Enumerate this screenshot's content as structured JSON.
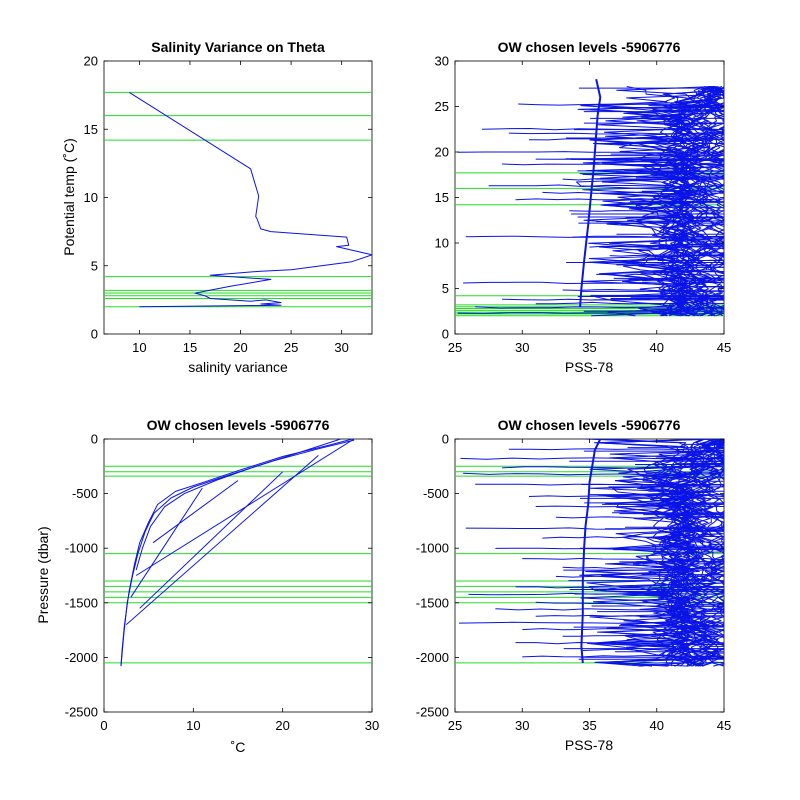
{
  "figure": {
    "line_color": "#0a14e6",
    "level_color": "#22dd22"
  },
  "chart_data": [
    {
      "type": "line",
      "title": "Salinity Variance on Theta",
      "xlabel": "salinity variance",
      "ylabel": "Potential temp (˚C)",
      "xlim": [
        6.5,
        33
      ],
      "ylim": [
        0,
        20
      ],
      "xticks": [
        10,
        15,
        20,
        25,
        30
      ],
      "yticks": [
        0,
        5,
        10,
        15,
        20
      ],
      "grid": false,
      "hlines": [
        17.7,
        16.0,
        14.2,
        4.2,
        3.2,
        3.0,
        2.8,
        2.6,
        2.0
      ],
      "series": [
        {
          "x": [
            9.0,
            21.0,
            21.8,
            21.5,
            21.6,
            22.0,
            23.0,
            30.5,
            30.7,
            29.5,
            33.0,
            31.0,
            28.0,
            25.0,
            22.0,
            17.0,
            23.0,
            19.0,
            15.5,
            16.5,
            17.0,
            21.0,
            22.5,
            24.0,
            22.0,
            24.0,
            10.0
          ],
          "y": [
            17.7,
            12.1,
            10.1,
            8.6,
            8.5,
            7.7,
            7.5,
            7.1,
            6.5,
            6.4,
            5.8,
            5.3,
            5.0,
            4.7,
            4.6,
            4.3,
            4.0,
            3.5,
            3.0,
            2.8,
            2.6,
            2.4,
            2.5,
            2.3,
            2.2,
            2.1,
            2.0
          ]
        }
      ]
    },
    {
      "type": "line",
      "title": "OW chosen levels -5906776",
      "xlabel": "PSS-78",
      "ylabel": "",
      "xlim": [
        25,
        45
      ],
      "ylim": [
        0,
        30
      ],
      "xticks": [
        25,
        30,
        35,
        40,
        45
      ],
      "yticks": [
        0,
        5,
        10,
        15,
        20,
        25,
        30
      ],
      "grid": false,
      "hlines": [
        17.7,
        16.0,
        14.2,
        4.2,
        3.2,
        3.0,
        2.8,
        2.6,
        2.4,
        2.2,
        2.0
      ],
      "spikes": [
        {
          "y": 25.2,
          "x": 29.7
        },
        {
          "y": 22.5,
          "x": 27.0
        },
        {
          "y": 22.0,
          "x": 29.0
        },
        {
          "y": 21.4,
          "x": 30.5
        },
        {
          "y": 20.0,
          "x": 25.2
        },
        {
          "y": 19.2,
          "x": 31.0
        },
        {
          "y": 18.6,
          "x": 28.5
        },
        {
          "y": 17.0,
          "x": 33.0
        },
        {
          "y": 16.3,
          "x": 27.5
        },
        {
          "y": 15.5,
          "x": 31.5
        },
        {
          "y": 14.8,
          "x": 29.5
        },
        {
          "y": 13.5,
          "x": 33.5
        },
        {
          "y": 12.4,
          "x": 35.5
        },
        {
          "y": 10.7,
          "x": 25.8
        },
        {
          "y": 9.6,
          "x": 35.0
        },
        {
          "y": 8.6,
          "x": 36.5
        },
        {
          "y": 7.6,
          "x": 37.0
        },
        {
          "y": 6.5,
          "x": 35.5
        },
        {
          "y": 5.6,
          "x": 25.6
        },
        {
          "y": 4.8,
          "x": 33.0
        },
        {
          "y": 3.8,
          "x": 28.5
        },
        {
          "y": 3.4,
          "x": 31.0
        },
        {
          "y": 2.9,
          "x": 26.5
        },
        {
          "y": 2.3,
          "x": 25.2
        }
      ],
      "core_profile": {
        "x": [
          34.3,
          34.4,
          34.6,
          34.9,
          35.1,
          35.3,
          35.4,
          35.5,
          35.6,
          35.8,
          35.5
        ],
        "y": [
          3.0,
          5.0,
          8.0,
          12.0,
          15.0,
          18.0,
          20.0,
          22.0,
          24.0,
          26.0,
          28.0
        ]
      }
    },
    {
      "type": "line",
      "title": "OW chosen levels -5906776",
      "xlabel": "˚C",
      "ylabel": "Pressure (dbar)",
      "xlim": [
        0,
        30
      ],
      "ylim": [
        -2500,
        0
      ],
      "xticks": [
        0,
        10,
        20,
        30
      ],
      "yticks": [
        0,
        -500,
        -1000,
        -1500,
        -2000,
        -2500
      ],
      "grid": false,
      "hlines": [
        -250,
        -300,
        -340,
        -1050,
        -1300,
        -1350,
        -1400,
        -1450,
        -1500,
        -2050
      ],
      "series": [
        {
          "x": [
            27.8,
            25,
            20,
            15,
            11,
            8,
            6,
            5,
            4,
            3.4,
            2.8,
            2.3,
            2.0,
            1.9
          ],
          "y": [
            0,
            -60,
            -160,
            -290,
            -400,
            -480,
            -600,
            -760,
            -950,
            -1150,
            -1400,
            -1700,
            -1950,
            -2080
          ]
        },
        {
          "x": [
            28.0,
            24,
            19,
            14,
            10,
            7.5,
            5.6,
            4.6,
            3.8,
            3.2,
            2.6,
            2.2,
            1.9
          ],
          "y": [
            -10,
            -90,
            -200,
            -330,
            -440,
            -540,
            -680,
            -850,
            -1050,
            -1250,
            -1500,
            -1800,
            -2080
          ]
        },
        {
          "x": [
            26.5,
            22,
            17,
            12.5,
            9,
            6.8,
            5.2,
            4.3,
            3.6
          ],
          "y": [
            0,
            -120,
            -250,
            -380,
            -500,
            -620,
            -800,
            -1000,
            -1200
          ]
        },
        {
          "x": [
            28,
            3.6
          ],
          "y": [
            0,
            -1250
          ]
        },
        {
          "x": [
            20,
            4.0
          ],
          "y": [
            -300,
            -1550
          ]
        },
        {
          "x": [
            11,
            3.0
          ],
          "y": [
            -450,
            -1450
          ]
        },
        {
          "x": [
            24,
            2.5
          ],
          "y": [
            -150,
            -1700
          ]
        },
        {
          "x": [
            15,
            5.5
          ],
          "y": [
            -380,
            -950
          ]
        }
      ]
    },
    {
      "type": "line",
      "title": "OW chosen levels -5906776",
      "xlabel": "PSS-78",
      "ylabel": "",
      "xlim": [
        25,
        45
      ],
      "ylim": [
        -2500,
        0
      ],
      "xticks": [
        25,
        30,
        35,
        40,
        45
      ],
      "yticks": [
        0,
        -500,
        -1000,
        -1500,
        -2000,
        -2500
      ],
      "grid": false,
      "hlines": [
        -250,
        -300,
        -340,
        -1050,
        -1300,
        -1350,
        -1400,
        -1450,
        -1500,
        -2050
      ],
      "spikes": [
        {
          "y": -90,
          "x": 29.0
        },
        {
          "y": -180,
          "x": 25.4
        },
        {
          "y": -260,
          "x": 28.5
        },
        {
          "y": -320,
          "x": 25.6
        },
        {
          "y": -420,
          "x": 26.5
        },
        {
          "y": -520,
          "x": 30.5
        },
        {
          "y": -620,
          "x": 31.0
        },
        {
          "y": -720,
          "x": 32.5
        },
        {
          "y": -820,
          "x": 25.8
        },
        {
          "y": -900,
          "x": 31.5
        },
        {
          "y": -1000,
          "x": 28.0
        },
        {
          "y": -1100,
          "x": 30.0
        },
        {
          "y": -1180,
          "x": 33.0
        },
        {
          "y": -1260,
          "x": 32.5
        },
        {
          "y": -1360,
          "x": 29.5
        },
        {
          "y": -1420,
          "x": 26.0
        },
        {
          "y": -1500,
          "x": 31.0
        },
        {
          "y": -1560,
          "x": 28.0
        },
        {
          "y": -1620,
          "x": 31.0
        },
        {
          "y": -1680,
          "x": 25.3
        },
        {
          "y": -1740,
          "x": 30.0
        },
        {
          "y": -1800,
          "x": 33.0
        },
        {
          "y": -1870,
          "x": 29.5
        },
        {
          "y": -1930,
          "x": 34.5
        },
        {
          "y": -1990,
          "x": 30.0
        },
        {
          "y": -2050,
          "x": 36.5
        }
      ],
      "core_profile": {
        "x": [
          35.8,
          35.4,
          35.2,
          35.0,
          34.9,
          34.7,
          34.6,
          34.5,
          34.5,
          34.4,
          34.5
        ],
        "y": [
          0,
          -100,
          -250,
          -400,
          -600,
          -800,
          -1000,
          -1300,
          -1600,
          -1900,
          -2050
        ]
      }
    }
  ]
}
